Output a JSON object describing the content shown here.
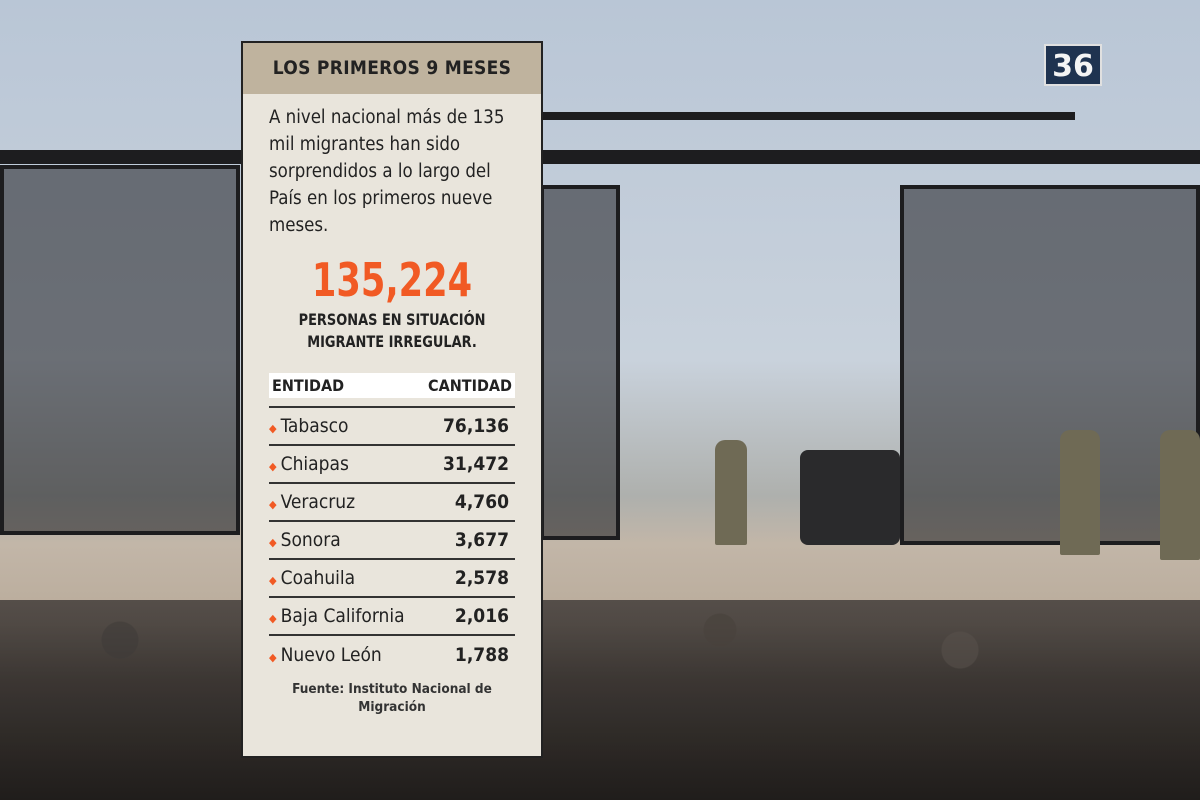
{
  "photo": {
    "sign_number": "36"
  },
  "infographic": {
    "title": "LOS PRIMEROS 9 MESES",
    "intro": "A nivel nacional más de 135 mil migrantes han sido sorprendidos a lo largo del País en los primeros nueve meses.",
    "total": "135,224",
    "total_label": "PERSONAS EN SITUACIÓN MIGRANTE IRREGULAR.",
    "table": {
      "headers": [
        "ENTIDAD",
        "CANTIDAD"
      ],
      "rows": [
        {
          "entidad": "Tabasco",
          "cantidad": "76,136"
        },
        {
          "entidad": "Chiapas",
          "cantidad": "31,472"
        },
        {
          "entidad": "Veracruz",
          "cantidad": "4,760"
        },
        {
          "entidad": "Sonora",
          "cantidad": "3,677"
        },
        {
          "entidad": "Coahuila",
          "cantidad": "2,578"
        },
        {
          "entidad": "Baja California",
          "cantidad": "2,016"
        },
        {
          "entidad": "Nuevo León",
          "cantidad": "1,788"
        }
      ]
    },
    "source": "Fuente: Instituto Nacional de Migración",
    "colors": {
      "accent": "#f15a24",
      "header_bg": "#bfb39e",
      "panel_bg": "#e9e5dc"
    }
  }
}
